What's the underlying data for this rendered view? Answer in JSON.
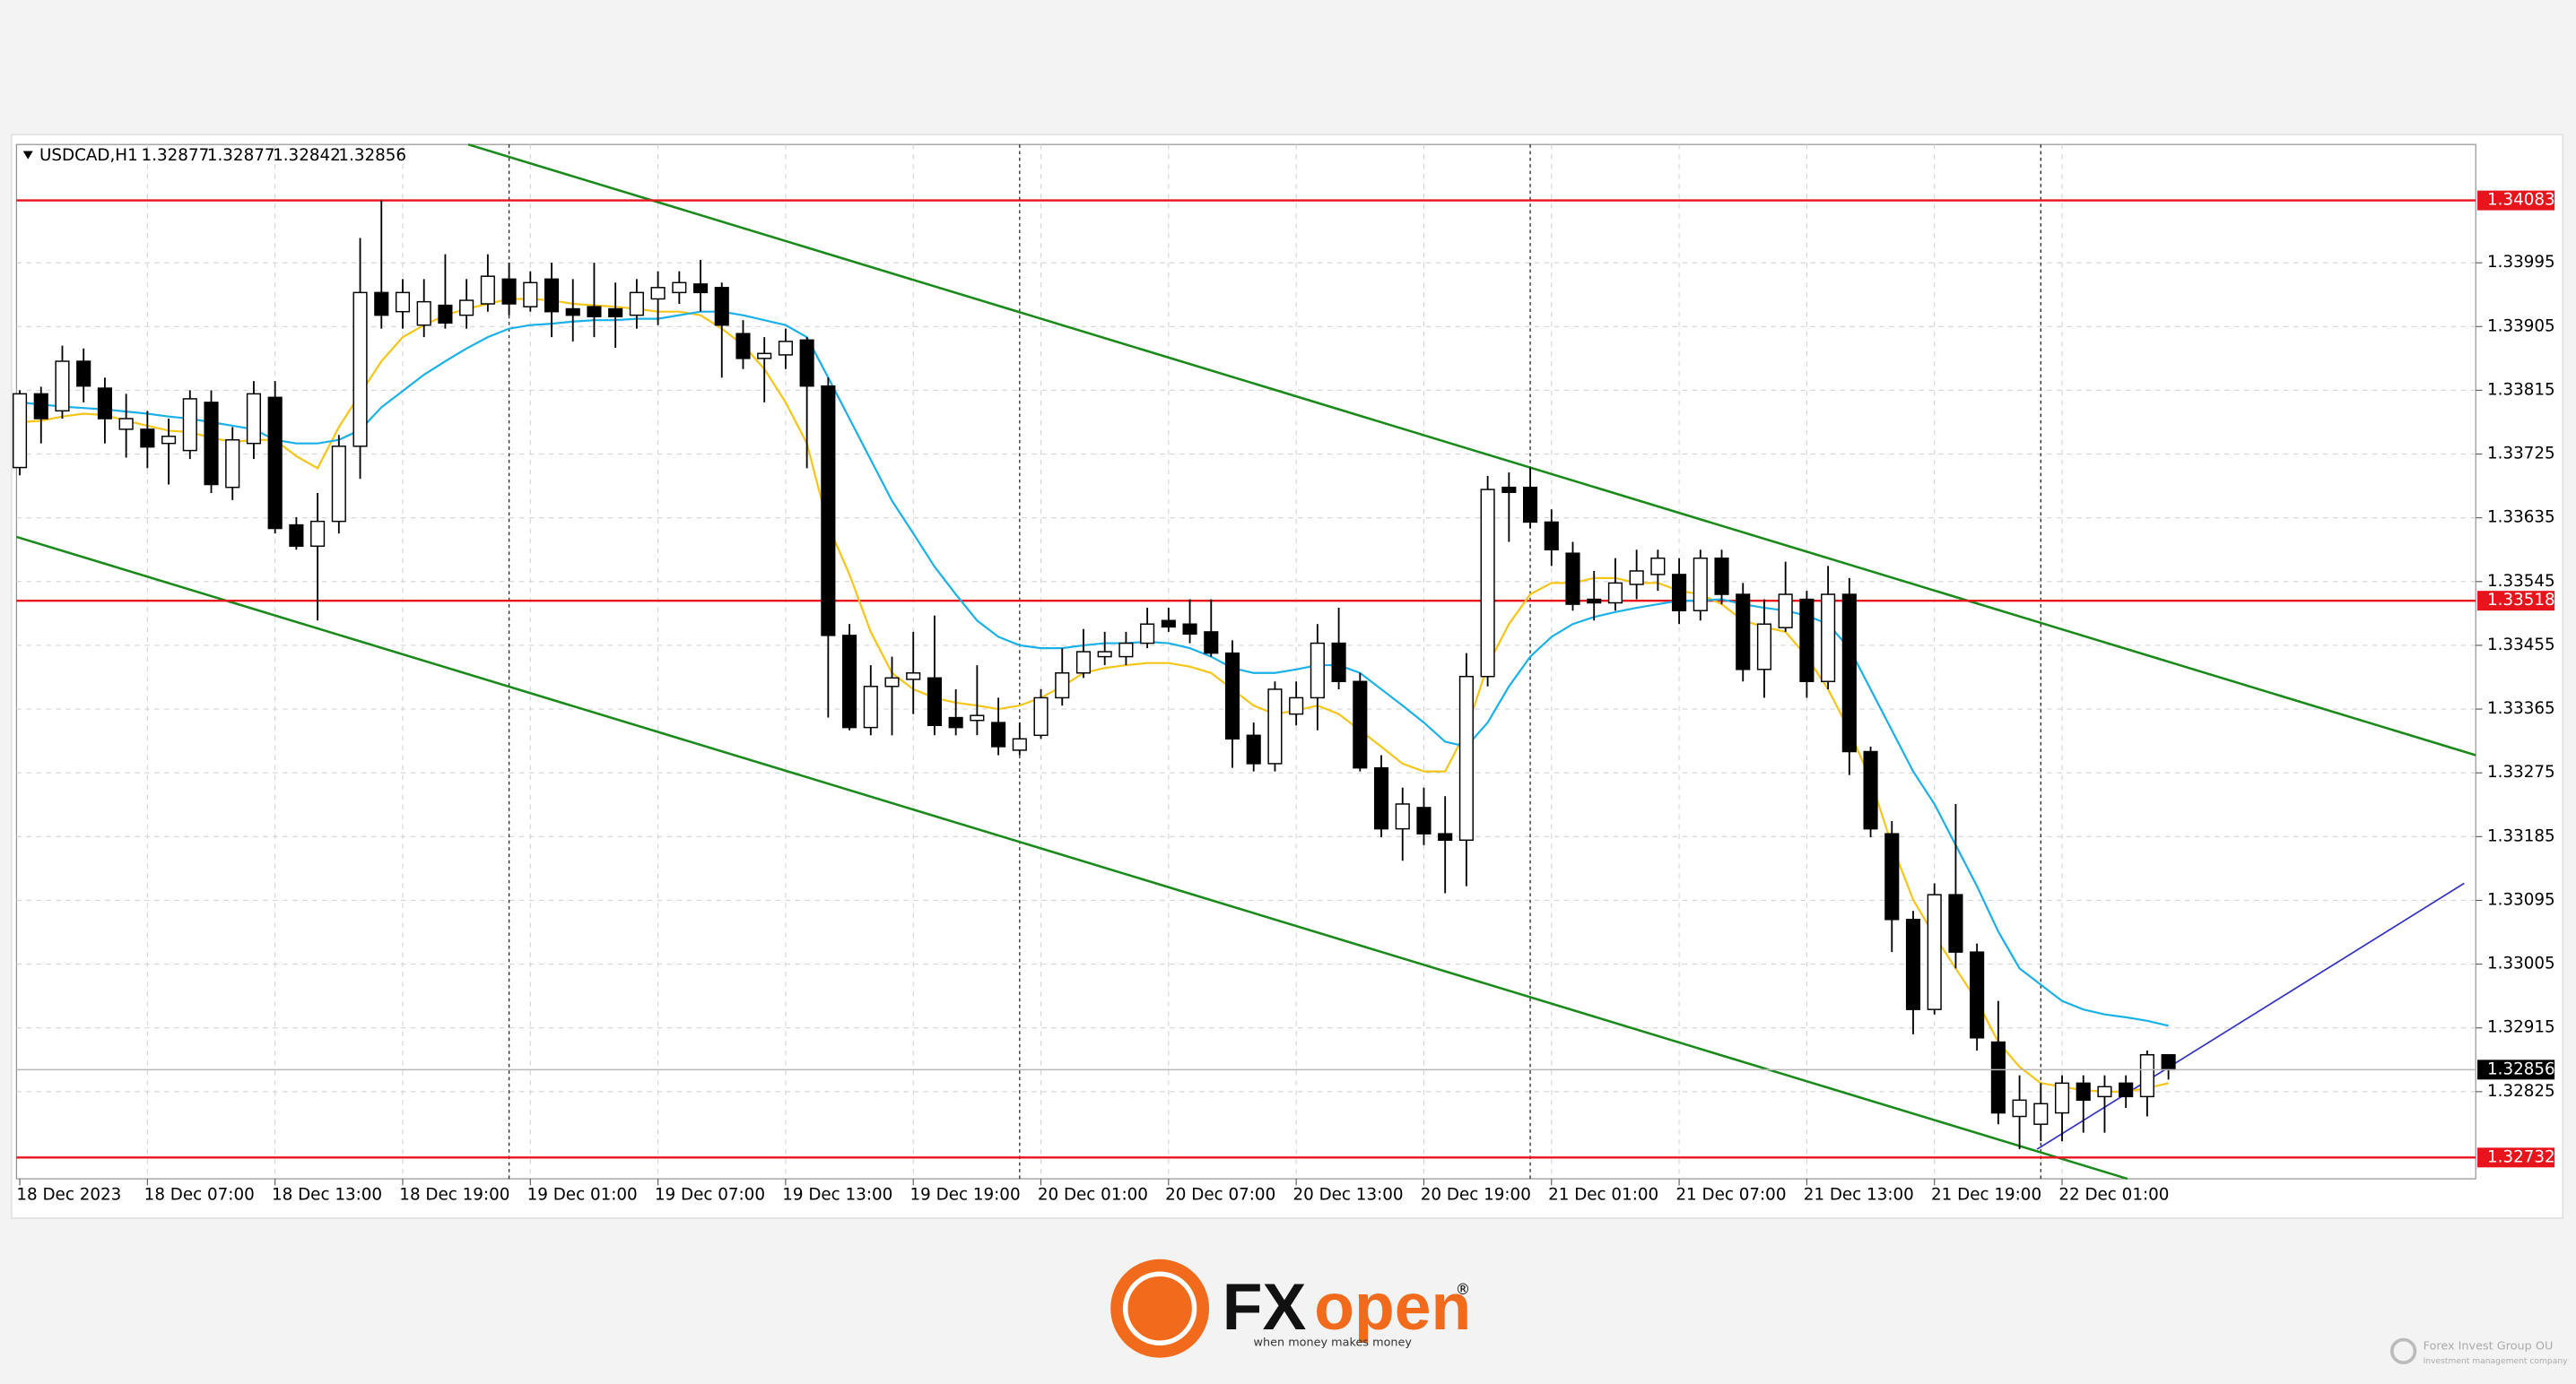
{
  "chart_data": {
    "type": "candlestick",
    "symbol": "USDCAD,H1",
    "categories": [
      "18 Dec 2023",
      null,
      null,
      null,
      null,
      null,
      "18 Dec 07:00",
      null,
      null,
      null,
      null,
      null,
      "18 Dec 13:00",
      null,
      null,
      null,
      null,
      null,
      "18 Dec 19:00",
      null,
      null,
      null,
      null,
      null,
      "19 Dec 01:00",
      null,
      null,
      null,
      null,
      null,
      "19 Dec 07:00",
      null,
      null,
      null,
      null,
      null,
      "19 Dec 13:00",
      null,
      null,
      null,
      null,
      null,
      "19 Dec 19:00",
      null,
      null,
      null,
      null,
      null,
      "20 Dec 01:00",
      null,
      null,
      null,
      null,
      null,
      "20 Dec 07:00",
      null,
      null,
      null,
      null,
      null,
      "20 Dec 13:00",
      null,
      null,
      null,
      null,
      null,
      "20 Dec 19:00",
      null,
      null,
      null,
      null,
      null,
      "21 Dec 01:00",
      null,
      null,
      null,
      null,
      null,
      "21 Dec 07:00",
      null,
      null,
      null,
      null,
      null,
      "21 Dec 13:00",
      null,
      null,
      null,
      null,
      null,
      "21 Dec 19:00",
      null,
      null,
      null,
      null,
      null,
      "22 Dec 01:00",
      null,
      null,
      null,
      null,
      null
    ],
    "open": [
      1.33706,
      1.3381,
      1.33786,
      1.33856,
      1.33818,
      1.3376,
      1.3376,
      1.3374,
      1.3373,
      1.33798,
      1.33678,
      1.3374,
      1.33805,
      1.33625,
      1.33595,
      1.3363,
      1.33736,
      1.33953,
      1.33926,
      1.33907,
      1.33935,
      1.33921,
      1.33937,
      1.33972,
      1.33933,
      1.33972,
      1.3393,
      1.33933,
      1.3393,
      1.33921,
      1.33944,
      1.33953,
      1.33965,
      1.3396,
      1.33895,
      1.3386,
      1.33865,
      1.33886,
      1.33821,
      1.33469,
      1.33339,
      1.33397,
      1.33407,
      1.33409,
      1.33353,
      1.33349,
      1.33346,
      1.33307,
      1.33328,
      1.33381,
      1.33416,
      1.33439,
      1.33439,
      1.33458,
      1.3349,
      1.33485,
      1.33474,
      1.33444,
      1.33328,
      1.33288,
      1.33358,
      1.33381,
      1.33458,
      1.33404,
      1.33282,
      1.33196,
      1.33226,
      1.33189,
      1.3318,
      1.33411,
      1.33678,
      1.33678,
      1.33629,
      1.33585,
      1.3352,
      1.33515,
      1.33541,
      1.33555,
      1.33555,
      1.33504,
      1.33578,
      1.33527,
      1.33421,
      1.3348,
      1.3352,
      1.33404,
      1.33527,
      1.33305,
      1.33189,
      1.33068,
      1.32941,
      1.33103,
      1.33022,
      1.32895,
      1.3279,
      1.32779,
      1.32795,
      1.32837,
      1.32818,
      1.32837,
      1.32818,
      1.32877
    ],
    "high": [
      1.33815,
      1.3382,
      1.33878,
      1.33874,
      1.33833,
      1.3381,
      1.33786,
      1.33775,
      1.33815,
      1.33815,
      1.33763,
      1.33828,
      1.33828,
      1.33636,
      1.3367,
      1.33752,
      1.3403,
      1.34083,
      1.33972,
      1.33972,
      1.34007,
      1.33972,
      1.34007,
      1.33995,
      1.33983,
      1.33995,
      1.33972,
      1.33995,
      1.33967,
      1.33972,
      1.33983,
      1.33983,
      1.33999,
      1.33967,
      1.33914,
      1.3389,
      1.33902,
      1.3389,
      1.33833,
      1.33485,
      1.33427,
      1.33439,
      1.33474,
      1.33497,
      1.33393,
      1.33427,
      1.33381,
      1.33346,
      1.33393,
      1.33451,
      1.33478,
      1.33474,
      1.33474,
      1.33508,
      1.33508,
      1.3352,
      1.3352,
      1.33462,
      1.33346,
      1.33404,
      1.33404,
      1.33485,
      1.33508,
      1.33416,
      1.333,
      1.33254,
      1.33254,
      1.33242,
      1.33444,
      1.33694,
      1.33699,
      1.33706,
      1.33647,
      1.33601,
      1.3356,
      1.33578,
      1.3359,
      1.3359,
      1.33578,
      1.3359,
      1.3359,
      1.33543,
      1.3352,
      1.33573,
      1.33532,
      1.33567,
      1.3355,
      1.33312,
      1.33207,
      1.3308,
      1.33119,
      1.33231,
      1.33034,
      1.32953,
      1.32848,
      1.32837,
      1.32848,
      1.32848,
      1.32848,
      1.32848,
      1.32883,
      1.32877
    ],
    "low": [
      1.33695,
      1.3374,
      1.33775,
      1.33798,
      1.3374,
      1.3372,
      1.33705,
      1.33682,
      1.33718,
      1.3367,
      1.3366,
      1.33718,
      1.33613,
      1.3359,
      1.3349,
      1.33613,
      1.3369,
      1.33902,
      1.33902,
      1.3389,
      1.33902,
      1.33902,
      1.33926,
      1.33921,
      1.33926,
      1.3389,
      1.33884,
      1.3389,
      1.33875,
      1.33902,
      1.33907,
      1.33937,
      1.33926,
      1.33833,
      1.33845,
      1.33798,
      1.33845,
      1.33705,
      1.33353,
      1.33335,
      1.33328,
      1.33328,
      1.33358,
      1.33328,
      1.33328,
      1.33328,
      1.333,
      1.333,
      1.33323,
      1.3337,
      1.33409,
      1.33427,
      1.33427,
      1.33451,
      1.33474,
      1.33458,
      1.33439,
      1.33282,
      1.33277,
      1.33277,
      1.33342,
      1.33335,
      1.33393,
      1.33277,
      1.33184,
      1.33151,
      1.33173,
      1.33105,
      1.33115,
      1.33397,
      1.33601,
      1.3362,
      1.33567,
      1.33504,
      1.3349,
      1.33504,
      1.3352,
      1.33532,
      1.33485,
      1.3349,
      1.33513,
      1.33404,
      1.33381,
      1.33474,
      1.33381,
      1.33393,
      1.33272,
      1.33184,
      1.33022,
      1.32906,
      1.32934,
      1.32999,
      1.32883,
      1.32779,
      1.32744,
      1.32755,
      1.32755,
      1.32767,
      1.32767,
      1.32802,
      1.3279,
      1.32842
    ],
    "close": [
      1.3381,
      1.33775,
      1.33856,
      1.33821,
      1.33775,
      1.33775,
      1.33735,
      1.3375,
      1.33803,
      1.33682,
      1.33745,
      1.3381,
      1.3362,
      1.33595,
      1.3363,
      1.33736,
      1.33953,
      1.33921,
      1.33953,
      1.3394,
      1.3391,
      1.33942,
      1.33976,
      1.33937,
      1.33967,
      1.33926,
      1.33921,
      1.33919,
      1.33919,
      1.33953,
      1.3396,
      1.33967,
      1.33953,
      1.33907,
      1.3386,
      1.33867,
      1.33884,
      1.33821,
      1.33469,
      1.33339,
      1.33397,
      1.33409,
      1.33416,
      1.33342,
      1.33339,
      1.33356,
      1.33312,
      1.33323,
      1.33381,
      1.33416,
      1.33446,
      1.33446,
      1.33458,
      1.33485,
      1.33481,
      1.33471,
      1.33444,
      1.33323,
      1.33288,
      1.33393,
      1.33381,
      1.33458,
      1.33404,
      1.33282,
      1.33196,
      1.33231,
      1.33189,
      1.3318,
      1.33411,
      1.33675,
      1.33671,
      1.33629,
      1.3359,
      1.33513,
      1.33515,
      1.33543,
      1.3356,
      1.33578,
      1.33504,
      1.33578,
      1.33527,
      1.33421,
      1.33485,
      1.33527,
      1.33404,
      1.33527,
      1.33305,
      1.33196,
      1.33068,
      1.32941,
      1.33103,
      1.33022,
      1.32901,
      1.32795,
      1.32813,
      1.32808,
      1.32837,
      1.32813,
      1.32832,
      1.32818,
      1.32877,
      1.32856
    ],
    "up_color": "#ffffff",
    "down_color": "#000000",
    "indicators": [
      {
        "color": "#f5c518",
        "values": [
          1.3377,
          1.33772,
          1.33778,
          1.33782,
          1.3378,
          1.33772,
          1.33765,
          1.33758,
          1.33756,
          1.33748,
          1.33742,
          1.33745,
          1.33745,
          1.33722,
          1.33705,
          1.33763,
          1.3381,
          1.33856,
          1.3389,
          1.33907,
          1.33921,
          1.3393,
          1.33937,
          1.33944,
          1.33944,
          1.33942,
          1.33937,
          1.33935,
          1.33933,
          1.3393,
          1.33926,
          1.33926,
          1.33921,
          1.33902,
          1.33879,
          1.33845,
          1.33798,
          1.3374,
          1.33624,
          1.33555,
          1.33474,
          1.33416,
          1.33393,
          1.33381,
          1.33374,
          1.3337,
          1.33365,
          1.3337,
          1.33381,
          1.33397,
          1.33416,
          1.33423,
          1.33427,
          1.3343,
          1.3343,
          1.33425,
          1.33416,
          1.33393,
          1.3337,
          1.33358,
          1.33363,
          1.3337,
          1.33358,
          1.33335,
          1.33312,
          1.33288,
          1.33277,
          1.33277,
          1.33335,
          1.33427,
          1.33485,
          1.33527,
          1.33543,
          1.33543,
          1.3355,
          1.3355,
          1.33543,
          1.33543,
          1.33532,
          1.33527,
          1.33513,
          1.3349,
          1.33481,
          1.33474,
          1.33439,
          1.33393,
          1.33335,
          1.33265,
          1.33173,
          1.33096,
          1.33045,
          1.32999,
          1.32953,
          1.32895,
          1.3286,
          1.32837,
          1.32832,
          1.32827,
          1.32825,
          1.32825,
          1.3283,
          1.32837
        ]
      },
      {
        "color": "#1ab0e8",
        "values": [
          1.33798,
          1.33795,
          1.33792,
          1.3379,
          1.33788,
          1.33785,
          1.33782,
          1.33778,
          1.33775,
          1.3377,
          1.33765,
          1.3376,
          1.33745,
          1.3374,
          1.3374,
          1.33745,
          1.33759,
          1.33791,
          1.33814,
          1.33837,
          1.33856,
          1.33874,
          1.3389,
          1.33902,
          1.33907,
          1.33909,
          1.33912,
          1.33914,
          1.33914,
          1.33916,
          1.33916,
          1.33921,
          1.33926,
          1.33926,
          1.33921,
          1.33914,
          1.33907,
          1.3389,
          1.33833,
          1.33775,
          1.33717,
          1.33659,
          1.33613,
          1.33566,
          1.33527,
          1.3349,
          1.33467,
          1.33455,
          1.33451,
          1.33451,
          1.33455,
          1.33458,
          1.33458,
          1.3346,
          1.33458,
          1.33451,
          1.33439,
          1.33423,
          1.33416,
          1.33416,
          1.33421,
          1.33427,
          1.33427,
          1.33416,
          1.33393,
          1.3337,
          1.33346,
          1.33319,
          1.33312,
          1.33346,
          1.33397,
          1.33439,
          1.33467,
          1.33485,
          1.33495,
          1.33502,
          1.33508,
          1.33513,
          1.33518,
          1.33518,
          1.3352,
          1.33513,
          1.33508,
          1.33504,
          1.33497,
          1.33485,
          1.33451,
          1.33393,
          1.33335,
          1.33277,
          1.33231,
          1.33173,
          1.33115,
          1.33051,
          1.32999,
          1.32976,
          1.32953,
          1.32941,
          1.32934,
          1.3293,
          1.32925,
          1.32918
        ]
      }
    ],
    "levels": [
      {
        "value": 1.34083,
        "color": "#e8141c"
      },
      {
        "value": 1.33518,
        "color": "#e8141c"
      },
      {
        "value": 1.32732,
        "color": "#e8141c"
      }
    ],
    "ylim": [
      1.32702,
      1.34162
    ],
    "yticks": [
      1.33995,
      1.33905,
      1.33815,
      1.33725,
      1.33635,
      1.33545,
      1.33455,
      1.33365,
      1.33275,
      1.33185,
      1.33095,
      1.33005,
      1.32915,
      1.32825
    ],
    "grid": true
  },
  "footer": {
    "brand_fx": "FX",
    "brand_open": "open",
    "registered": "®",
    "tagline": "when money makes money",
    "company": "Forex Invest Group OU",
    "company_sub": "Investment management company"
  }
}
